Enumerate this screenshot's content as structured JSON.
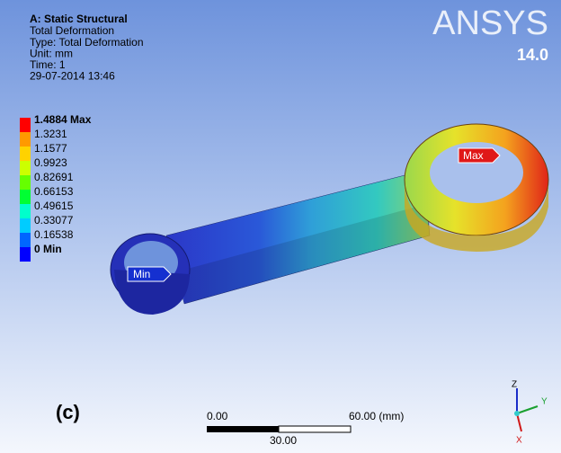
{
  "header": {
    "title": "A: Static Structural",
    "lines": [
      "Total Deformation",
      "Type: Total Deformation",
      "Unit: mm",
      "Time: 1",
      "29-07-2014 13:46"
    ]
  },
  "legend": [
    {
      "label": "1.4884 Max",
      "color": "#ff0000"
    },
    {
      "label": "1.3231",
      "color": "#ff9900"
    },
    {
      "label": "1.1577",
      "color": "#ffd200"
    },
    {
      "label": "0.9923",
      "color": "#ccff00"
    },
    {
      "label": "0.82691",
      "color": "#66ff00"
    },
    {
      "label": "0.66153",
      "color": "#00ff33"
    },
    {
      "label": "0.49615",
      "color": "#00ffcc"
    },
    {
      "label": "0.33077",
      "color": "#00ccff"
    },
    {
      "label": "0.16538",
      "color": "#0066ff"
    },
    {
      "label": "0 Min",
      "color": "#0000ff"
    }
  ],
  "logo": {
    "brand": "ANSYS",
    "version": "14.0"
  },
  "probes": {
    "min": "Min",
    "max": "Max"
  },
  "scale_bar": {
    "left": "0.00",
    "right": "60.00 (mm)",
    "middle": "30.00"
  },
  "triad": {
    "x": "X",
    "y": "Y",
    "z": "Z"
  },
  "panel_label": "(c)"
}
